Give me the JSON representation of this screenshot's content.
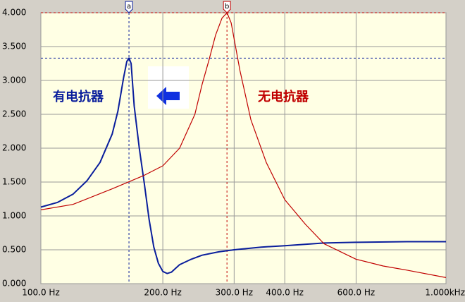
{
  "chart_data": {
    "type": "line",
    "xscale": "log",
    "grid": true,
    "xlim": [
      100,
      1000
    ],
    "xticks": [
      {
        "value": 100,
        "label": "100.0 Hz"
      },
      {
        "value": 200,
        "label": "200.0 Hz"
      },
      {
        "value": 300,
        "label": "300.0 Hz"
      },
      {
        "value": 400,
        "label": "400.0 Hz"
      },
      {
        "value": 600,
        "label": "600.0 Hz"
      },
      {
        "value": 1000,
        "label": "1.000kHz"
      }
    ],
    "ylim": [
      0,
      4
    ],
    "yticks": [
      {
        "value": 0,
        "label": "0.000"
      },
      {
        "value": 0.5,
        "label": "0.500"
      },
      {
        "value": 1,
        "label": "1.000"
      },
      {
        "value": 1.5,
        "label": "1.500"
      },
      {
        "value": 2,
        "label": "2.000"
      },
      {
        "value": 2.5,
        "label": "2.500"
      },
      {
        "value": 3,
        "label": "3.000"
      },
      {
        "value": 3.5,
        "label": "3.500"
      },
      {
        "value": 4,
        "label": "4.000"
      }
    ],
    "series": [
      {
        "name": "有电抗器",
        "color": "#0a1e9c",
        "x": [
          100,
          110,
          120,
          130,
          140,
          150,
          155,
          160,
          163,
          165,
          167,
          170,
          175,
          180,
          185,
          190,
          195,
          200,
          205,
          210,
          220,
          235,
          250,
          275,
          300,
          350,
          400,
          500,
          600,
          800,
          1000
        ],
        "values": [
          1.13,
          1.2,
          1.32,
          1.52,
          1.79,
          2.21,
          2.55,
          3.04,
          3.28,
          3.33,
          3.25,
          2.62,
          2.0,
          1.48,
          0.95,
          0.54,
          0.3,
          0.18,
          0.15,
          0.17,
          0.28,
          0.36,
          0.42,
          0.47,
          0.5,
          0.54,
          0.56,
          0.6,
          0.61,
          0.62,
          0.62
        ]
      },
      {
        "name": "无电抗器",
        "color": "#c00000",
        "x": [
          100,
          120,
          150,
          180,
          200,
          220,
          240,
          250,
          260,
          270,
          280,
          288,
          295,
          310,
          330,
          360,
          400,
          450,
          500,
          600,
          700,
          800,
          1000
        ],
        "values": [
          1.09,
          1.17,
          1.4,
          1.6,
          1.74,
          2.0,
          2.5,
          2.94,
          3.3,
          3.67,
          3.92,
          4.0,
          3.85,
          3.15,
          2.42,
          1.79,
          1.24,
          0.875,
          0.59,
          0.36,
          0.26,
          0.2,
          0.09
        ]
      }
    ],
    "markers": [
      {
        "label": "a",
        "x": 165,
        "y": 3.33,
        "color": "#0a1e9c"
      },
      {
        "label": "b",
        "x": 288,
        "y": 4.0,
        "color": "#c00000"
      }
    ]
  }
}
